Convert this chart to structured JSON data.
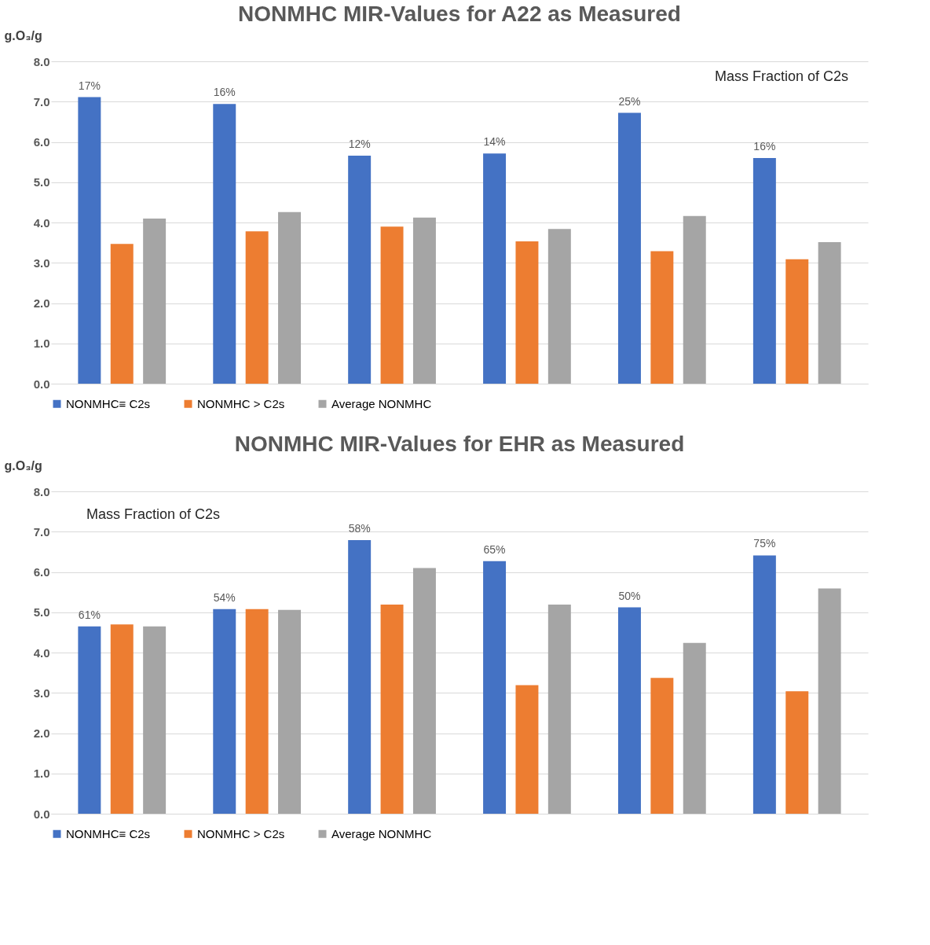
{
  "chart_data": [
    {
      "type": "bar",
      "title": "NONMHC MIR-Values for A22 as Measured",
      "ylabel": "g.O₃/g",
      "categories": [
        null,
        null,
        null,
        null,
        null,
        null
      ],
      "ylim": [
        0,
        8
      ],
      "yticks": [
        {
          "value": 0,
          "label": "0.0"
        },
        {
          "value": 1,
          "label": "1.0"
        },
        {
          "value": 2,
          "label": "2.0"
        },
        {
          "value": 3,
          "label": "3.0"
        },
        {
          "value": 4,
          "label": "4.0"
        },
        {
          "value": 5,
          "label": "5.0"
        },
        {
          "value": 6,
          "label": "6.0"
        },
        {
          "value": 7,
          "label": "7.0"
        },
        {
          "value": 8,
          "label": "8.0"
        }
      ],
      "grid": "y",
      "legend": "bottom",
      "annotations": [
        "Mass Fraction of C2s",
        {
          "text": "17%",
          "y": 7.11
        },
        {
          "text": "16%",
          "y": 6.94
        },
        {
          "text": "12%",
          "y": 5.66
        },
        {
          "text": "14%",
          "y": 5.71
        },
        {
          "text": "25%",
          "y": 6.72
        },
        {
          "text": "16%",
          "y": 5.6
        }
      ],
      "series": [
        {
          "name": "NONMHC≡ C2s",
          "color": "#4472c4",
          "values": [
            7.11,
            6.94,
            5.66,
            5.71,
            6.72,
            5.6
          ]
        },
        {
          "name": "NONMHC > C2s",
          "color": "#ed7d31",
          "values": [
            3.47,
            3.78,
            3.9,
            3.53,
            3.29,
            3.09
          ]
        },
        {
          "name": "Average NONMHC",
          "color": "#a5a5a5",
          "values": [
            4.1,
            4.26,
            4.12,
            3.84,
            4.16,
            3.51
          ]
        }
      ]
    },
    {
      "type": "bar",
      "title": "NONMHC MIR-Values for EHR as Measured",
      "ylabel": "g.O₃/g",
      "categories": [
        null,
        null,
        null,
        null,
        null,
        null
      ],
      "ylim": [
        0,
        8
      ],
      "yticks": [
        {
          "value": 0,
          "label": "0.0"
        },
        {
          "value": 1,
          "label": "1.0"
        },
        {
          "value": 2,
          "label": "2.0"
        },
        {
          "value": 3,
          "label": "3.0"
        },
        {
          "value": 4,
          "label": "4.0"
        },
        {
          "value": 5,
          "label": "5.0"
        },
        {
          "value": 6,
          "label": "6.0"
        },
        {
          "value": 7,
          "label": "7.0"
        },
        {
          "value": 8,
          "label": "8.0"
        }
      ],
      "grid": "y",
      "legend": "bottom",
      "annotations": [
        "Mass Fraction of C2s",
        {
          "text": "61%",
          "y": 4.65
        },
        {
          "text": "54%",
          "y": 5.08
        },
        {
          "text": "58%",
          "y": 6.79
        },
        {
          "text": "65%",
          "y": 6.27
        },
        {
          "text": "50%",
          "y": 5.12
        },
        {
          "text": "75%",
          "y": 6.41
        }
      ],
      "series": [
        {
          "name": "NONMHC≡ C2s",
          "color": "#4472c4",
          "values": [
            4.65,
            5.08,
            6.79,
            6.27,
            5.12,
            6.41
          ]
        },
        {
          "name": "NONMHC > C2s",
          "color": "#ed7d31",
          "values": [
            4.7,
            5.08,
            5.19,
            3.19,
            3.37,
            3.04
          ]
        },
        {
          "name": "Average NONMHC",
          "color": "#a5a5a5",
          "values": [
            4.65,
            5.06,
            6.1,
            5.19,
            4.24,
            5.59
          ]
        }
      ]
    }
  ]
}
